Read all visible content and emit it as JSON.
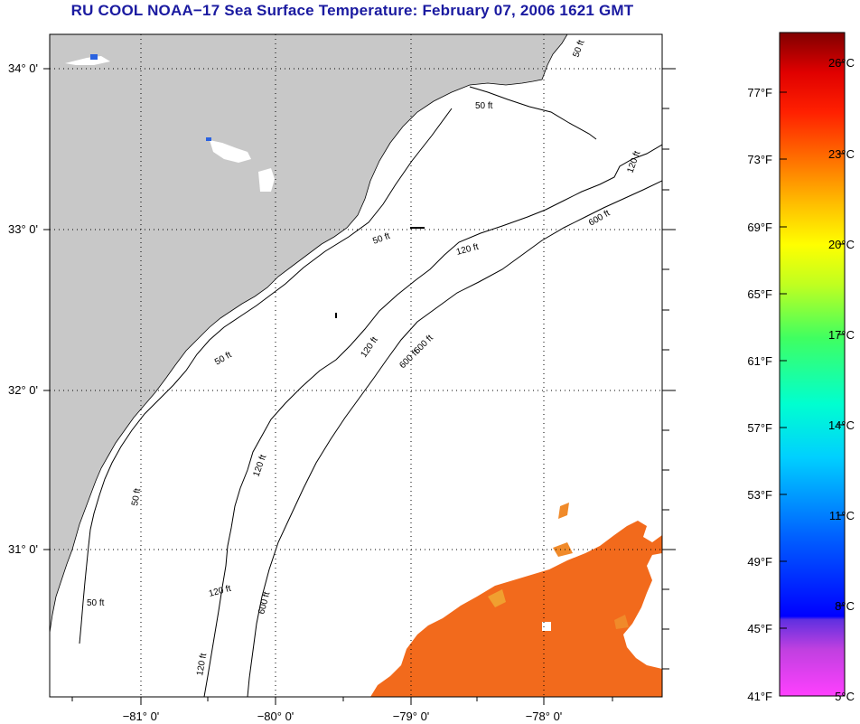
{
  "title": "RU COOL  NOAA−17  Sea Surface Temperature:  February 07, 2006 1621 GMT",
  "map": {
    "lat_labels": [
      "34° 0'",
      "33° 0'",
      "32° 0'",
      "31° 0'"
    ],
    "lon_labels": [
      "−81° 0'",
      "−80° 0'",
      "−79° 0'",
      "−78° 0'"
    ],
    "contour_labels": [
      "50 ft",
      "50 ft",
      "50 ft",
      "50 ft",
      "50 ft",
      "50 ft",
      "120 ft",
      "120 ft",
      "120 ft",
      "120 ft",
      "120 ft",
      "120 ft",
      "600 ft",
      "600 ft",
      "600 ft",
      "600 ft"
    ],
    "colors": {
      "land": "#c8c8c8",
      "ocean": "#ffffff",
      "sst_warm": "#f26a1c",
      "sst_cool": "#2a62e0"
    }
  },
  "colorbar": {
    "fahrenheit_labels": [
      "77°F",
      "73°F",
      "69°F",
      "65°F",
      "61°F",
      "57°F",
      "53°F",
      "49°F",
      "45°F",
      "41°F"
    ],
    "celsius_labels": [
      "26°C",
      "23°C",
      "20°C",
      "17°C",
      "14°C",
      "11°C",
      "8°C",
      "5°C"
    ]
  }
}
